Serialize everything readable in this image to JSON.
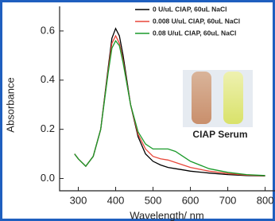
{
  "chart_data": {
    "type": "line",
    "xlabel": "Wavelength/ nm",
    "ylabel": "Absorbance",
    "annotation": "CIAP Serum",
    "x": [
      290,
      300,
      320,
      340,
      360,
      380,
      390,
      400,
      410,
      420,
      440,
      460,
      480,
      500,
      520,
      540,
      560,
      580,
      600,
      650,
      700,
      750,
      800
    ],
    "series": [
      {
        "name": "0 U/uL CIAP, 60uL NaCl",
        "color": "#000000",
        "values": [
          0.1,
          0.08,
          0.05,
          0.09,
          0.2,
          0.45,
          0.57,
          0.61,
          0.58,
          0.5,
          0.3,
          0.17,
          0.1,
          0.07,
          0.055,
          0.045,
          0.04,
          0.035,
          0.03,
          0.022,
          0.016,
          0.012,
          0.01
        ]
      },
      {
        "name": "0.008 U/uL CIAP, 60uL NaCl",
        "color": "#e8473a",
        "values": [
          0.1,
          0.08,
          0.05,
          0.09,
          0.2,
          0.44,
          0.55,
          0.58,
          0.55,
          0.48,
          0.3,
          0.18,
          0.12,
          0.09,
          0.08,
          0.075,
          0.065,
          0.055,
          0.045,
          0.03,
          0.02,
          0.014,
          0.011
        ]
      },
      {
        "name": "0.08 U/uL CIAP, 60uL NaCl",
        "color": "#1a9a2a",
        "values": [
          0.1,
          0.08,
          0.05,
          0.09,
          0.2,
          0.43,
          0.53,
          0.56,
          0.54,
          0.47,
          0.3,
          0.19,
          0.14,
          0.12,
          0.12,
          0.12,
          0.11,
          0.09,
          0.07,
          0.04,
          0.025,
          0.016,
          0.012
        ]
      }
    ],
    "xlim": [
      250,
      820
    ],
    "xticks": [
      300,
      400,
      500,
      600,
      700,
      800
    ],
    "ylim": [
      -0.05,
      0.7
    ],
    "yticks": [
      {
        "value": 0,
        "label": "0.0"
      },
      0.2,
      0.4,
      0.6
    ],
    "legend": "upper right"
  }
}
